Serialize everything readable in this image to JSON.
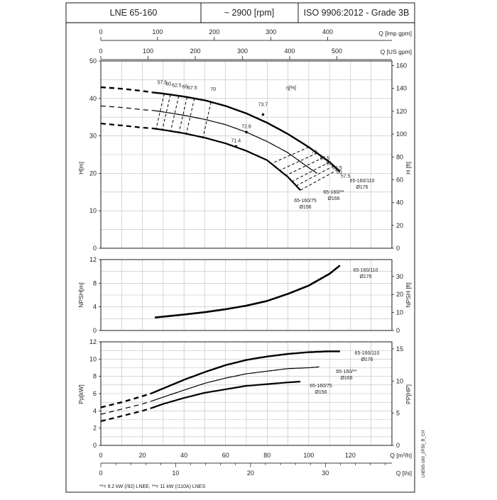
{
  "header": {
    "model": "LNE 65-160",
    "speed": "~ 2900 [rpm]",
    "standard": "ISO 9906:2012 - Grade 3B"
  },
  "footnote": "**= 9.2 kW (/92) LNEE, **= 11 kW (/110A) LNES",
  "side_code": "LNE65-160_2P50_B_CH",
  "top_axes": {
    "imp": {
      "label": "Q [Imp gpm]",
      "ticks": [
        "0",
        "100",
        "200",
        "300",
        "400"
      ]
    },
    "us": {
      "label": "Q [US gpm]",
      "ticks": [
        "0",
        "100",
        "200",
        "300",
        "400",
        "500"
      ]
    }
  },
  "bottom_axes": {
    "m3h": {
      "label": "Q [m³/h]",
      "ticks": [
        "0",
        "20",
        "40",
        "60",
        "80",
        "100",
        "120"
      ]
    },
    "ls": {
      "label": "Q [l/s]",
      "ticks": [
        "0",
        "10",
        "20",
        "30"
      ]
    }
  },
  "panels": {
    "head": {
      "ylabel_left": "H[m]",
      "ylabel_right": "H [ft]",
      "yticks_left": [
        "0",
        "10",
        "20",
        "30",
        "40",
        "50"
      ],
      "yticks_right": [
        "0",
        "20",
        "40",
        "60",
        "80",
        "100",
        "120",
        "140",
        "160"
      ],
      "eta_label": "η[%]"
    },
    "npsh": {
      "ylabel_left": "NPSH[m]",
      "ylabel_right": "NPSH [ft]",
      "yticks_left": [
        "0",
        "4",
        "8",
        "12"
      ],
      "yticks_right": [
        "0",
        "10",
        "20",
        "30"
      ]
    },
    "power": {
      "ylabel_left": "Pp[kW]",
      "ylabel_right": "PP[HP]",
      "yticks_left": [
        "0",
        "2",
        "4",
        "6",
        "8",
        "10",
        "12"
      ],
      "yticks_right": [
        "0",
        "5",
        "10",
        "15"
      ]
    }
  },
  "chart_data": [
    {
      "type": "line",
      "panel": "head",
      "xlabel": "Q [m³/h]",
      "ylabel": "H[m]",
      "xlim": [
        0,
        140
      ],
      "ylim": [
        0,
        50
      ],
      "grid": true,
      "series": [
        {
          "name": "65-160/110 Ø176",
          "x_start": 0,
          "solid_from": 25,
          "x_end": 115,
          "x": [
            0,
            10,
            20,
            25,
            30,
            40,
            50,
            60,
            70,
            80,
            90,
            100,
            110,
            115
          ],
          "y": [
            43,
            42.6,
            42.0,
            41.6,
            41.3,
            40.5,
            39.5,
            38,
            36,
            33.5,
            30.5,
            27,
            23,
            20.5
          ]
        },
        {
          "name": "65-160/** Ø166",
          "x_start": 0,
          "solid_from": 25,
          "x_end": 104,
          "x": [
            0,
            10,
            20,
            25,
            30,
            40,
            50,
            60,
            70,
            80,
            90,
            100,
            104
          ],
          "y": [
            38,
            37.6,
            37.0,
            36.8,
            36.4,
            35.5,
            34.4,
            33,
            31,
            28.5,
            25.5,
            21.5,
            20
          ]
        },
        {
          "name": "65-160/75 Ø156",
          "x_start": 0,
          "solid_from": 25,
          "x_end": 96,
          "x": [
            0,
            10,
            20,
            25,
            30,
            40,
            50,
            60,
            70,
            80,
            90,
            96
          ],
          "y": [
            33.3,
            32.8,
            32.2,
            32.0,
            31.6,
            30.7,
            29.5,
            28,
            26,
            23.5,
            19,
            15.5
          ]
        }
      ],
      "efficiency": {
        "label": "η[%]",
        "iso_lines": [
          "57.5",
          "60",
          "62.5",
          "65",
          "67.5",
          "70"
        ],
        "left_x": [
          30.5,
          33.5,
          37.5,
          41.5,
          45,
          53
        ],
        "right_x": [
          114,
          112,
          110,
          107,
          104,
          100
        ],
        "bep_values": [
          "73.7",
          "72.6",
          "71.4"
        ],
        "bep_points": [
          [
            78,
            35.7
          ],
          [
            70,
            31.0
          ],
          [
            65,
            27.2
          ]
        ]
      }
    },
    {
      "type": "line",
      "panel": "npsh",
      "xlabel": "Q [m³/h]",
      "ylabel": "NPSH[m]",
      "xlim": [
        0,
        140
      ],
      "ylim": [
        0,
        12
      ],
      "grid": true,
      "series": [
        {
          "name": "65-160/110 Ø176",
          "x": [
            26,
            40,
            50,
            60,
            70,
            80,
            90,
            100,
            110,
            115
          ],
          "y": [
            2.2,
            2.7,
            3.1,
            3.6,
            4.2,
            5.0,
            6.2,
            7.6,
            9.6,
            11.0
          ]
        }
      ]
    },
    {
      "type": "line",
      "panel": "power",
      "xlabel": "Q [m³/h]",
      "ylabel": "Pp[kW]",
      "xlim": [
        0,
        140
      ],
      "ylim": [
        0,
        12
      ],
      "grid": true,
      "series": [
        {
          "name": "65-160/110 Ø176",
          "x_start": 0,
          "solid_from": 24,
          "x_end": 115,
          "x": [
            0,
            10,
            20,
            24,
            30,
            40,
            50,
            60,
            70,
            80,
            90,
            100,
            110,
            115
          ],
          "y": [
            4.4,
            5.0,
            5.7,
            6.0,
            6.6,
            7.6,
            8.5,
            9.3,
            9.9,
            10.3,
            10.6,
            10.8,
            10.9,
            10.9
          ]
        },
        {
          "name": "65-160/** Ø166",
          "x_start": 0,
          "solid_from": 24,
          "x_end": 105,
          "x": [
            0,
            10,
            20,
            24,
            30,
            40,
            50,
            60,
            70,
            80,
            90,
            100,
            105
          ],
          "y": [
            3.6,
            4.2,
            4.8,
            5.1,
            5.6,
            6.4,
            7.2,
            7.8,
            8.3,
            8.6,
            8.9,
            9.0,
            9.1
          ]
        },
        {
          "name": "65-160/75 Ø156",
          "x_start": 0,
          "solid_from": 24,
          "x_end": 96,
          "x": [
            0,
            10,
            20,
            24,
            30,
            40,
            50,
            60,
            70,
            80,
            90,
            96
          ],
          "y": [
            2.8,
            3.4,
            4.0,
            4.3,
            4.8,
            5.5,
            6.1,
            6.5,
            6.9,
            7.1,
            7.3,
            7.4
          ]
        }
      ]
    }
  ],
  "labels": {
    "head_110": [
      "65-160/110",
      "Ø176"
    ],
    "head_mid": [
      "65-160/**",
      "Ø166"
    ],
    "head_75": [
      "65-160/75",
      "Ø156"
    ],
    "npsh_110": [
      "65-160/110",
      "Ø176"
    ],
    "pow_110": [
      "65-160/110",
      "Ø176"
    ],
    "pow_mid": [
      "65-160/**",
      "Ø166"
    ],
    "pow_75": [
      "65-160/75",
      "Ø156"
    ]
  }
}
